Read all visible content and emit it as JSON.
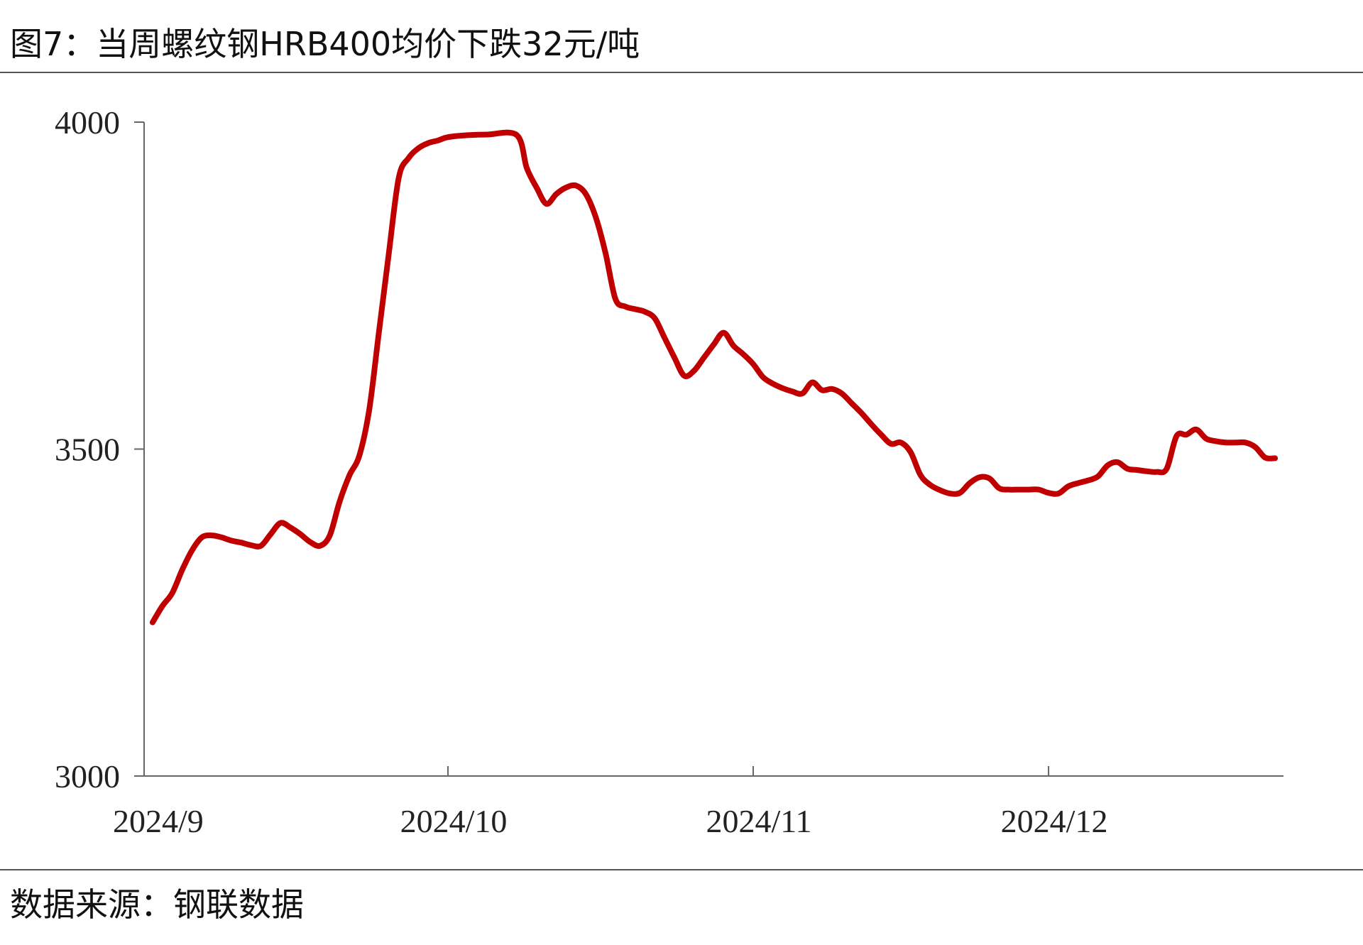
{
  "header": {
    "title": "图7：当周螺纹钢HRB400均价下跌32元/吨"
  },
  "footer": {
    "source": "数据来源：钢联数据"
  },
  "chart_data": {
    "type": "line",
    "title": "图7：当周螺纹钢HRB400均价下跌32元/吨",
    "xlabel": "",
    "ylabel": "",
    "ylim": [
      3000,
      4000
    ],
    "yticks": [
      3000,
      3500,
      4000
    ],
    "xticks": [
      "2024/9",
      "2024/10",
      "2024/11",
      "2024/12"
    ],
    "grid": false,
    "legend": "none",
    "series": [
      {
        "color": "#c00000",
        "points": [
          [
            "2024-09-01",
            3235
          ],
          [
            "2024-09-02",
            3260
          ],
          [
            "2024-09-03",
            3280
          ],
          [
            "2024-09-04",
            3315
          ],
          [
            "2024-09-05",
            3345
          ],
          [
            "2024-09-06",
            3365
          ],
          [
            "2024-09-07",
            3368
          ],
          [
            "2024-09-08",
            3365
          ],
          [
            "2024-09-09",
            3360
          ],
          [
            "2024-09-10",
            3357
          ],
          [
            "2024-09-11",
            3353
          ],
          [
            "2024-09-12",
            3352
          ],
          [
            "2024-09-13",
            3370
          ],
          [
            "2024-09-14",
            3387
          ],
          [
            "2024-09-15",
            3380
          ],
          [
            "2024-09-16",
            3370
          ],
          [
            "2024-09-17",
            3358
          ],
          [
            "2024-09-18",
            3352
          ],
          [
            "2024-09-19",
            3368
          ],
          [
            "2024-09-20",
            3420
          ],
          [
            "2024-09-21",
            3460
          ],
          [
            "2024-09-22",
            3490
          ],
          [
            "2024-09-23",
            3560
          ],
          [
            "2024-09-24",
            3680
          ],
          [
            "2024-09-25",
            3800
          ],
          [
            "2024-09-26",
            3915
          ],
          [
            "2024-09-27",
            3945
          ],
          [
            "2024-09-28",
            3960
          ],
          [
            "2024-09-29",
            3968
          ],
          [
            "2024-09-30",
            3972
          ],
          [
            "2024-10-01",
            3977
          ],
          [
            "2024-10-03",
            3980
          ],
          [
            "2024-10-05",
            3981
          ],
          [
            "2024-10-08",
            3980
          ],
          [
            "2024-10-09",
            3930
          ],
          [
            "2024-10-10",
            3900
          ],
          [
            "2024-10-11",
            3875
          ],
          [
            "2024-10-12",
            3890
          ],
          [
            "2024-10-13",
            3900
          ],
          [
            "2024-10-14",
            3903
          ],
          [
            "2024-10-15",
            3890
          ],
          [
            "2024-10-16",
            3855
          ],
          [
            "2024-10-17",
            3800
          ],
          [
            "2024-10-18",
            3730
          ],
          [
            "2024-10-19",
            3718
          ],
          [
            "2024-10-20",
            3714
          ],
          [
            "2024-10-21",
            3710
          ],
          [
            "2024-10-22",
            3700
          ],
          [
            "2024-10-23",
            3670
          ],
          [
            "2024-10-24",
            3640
          ],
          [
            "2024-10-25",
            3612
          ],
          [
            "2024-10-26",
            3620
          ],
          [
            "2024-10-27",
            3640
          ],
          [
            "2024-10-28",
            3660
          ],
          [
            "2024-10-29",
            3678
          ],
          [
            "2024-10-30",
            3658
          ],
          [
            "2024-10-31",
            3645
          ],
          [
            "2024-11-01",
            3630
          ],
          [
            "2024-11-02",
            3610
          ],
          [
            "2024-11-03",
            3600
          ],
          [
            "2024-11-04",
            3593
          ],
          [
            "2024-11-05",
            3588
          ],
          [
            "2024-11-06",
            3585
          ],
          [
            "2024-11-07",
            3602
          ],
          [
            "2024-11-08",
            3590
          ],
          [
            "2024-11-09",
            3592
          ],
          [
            "2024-11-10",
            3585
          ],
          [
            "2024-11-11",
            3570
          ],
          [
            "2024-11-12",
            3555
          ],
          [
            "2024-11-13",
            3538
          ],
          [
            "2024-11-14",
            3522
          ],
          [
            "2024-11-15",
            3508
          ],
          [
            "2024-11-16",
            3510
          ],
          [
            "2024-11-17",
            3495
          ],
          [
            "2024-11-18",
            3460
          ],
          [
            "2024-11-19",
            3445
          ],
          [
            "2024-11-20",
            3437
          ],
          [
            "2024-11-21",
            3432
          ],
          [
            "2024-11-22",
            3433
          ],
          [
            "2024-11-23",
            3448
          ],
          [
            "2024-11-24",
            3457
          ],
          [
            "2024-11-25",
            3455
          ],
          [
            "2024-11-26",
            3440
          ],
          [
            "2024-11-27",
            3438
          ],
          [
            "2024-11-28",
            3438
          ],
          [
            "2024-11-29",
            3438
          ],
          [
            "2024-11-30",
            3438
          ],
          [
            "2024-12-01",
            3433
          ],
          [
            "2024-12-02",
            3432
          ],
          [
            "2024-12-03",
            3443
          ],
          [
            "2024-12-04",
            3448
          ],
          [
            "2024-12-05",
            3452
          ],
          [
            "2024-12-06",
            3458
          ],
          [
            "2024-12-07",
            3475
          ],
          [
            "2024-12-08",
            3480
          ],
          [
            "2024-12-09",
            3470
          ],
          [
            "2024-12-10",
            3468
          ],
          [
            "2024-12-11",
            3466
          ],
          [
            "2024-12-12",
            3465
          ],
          [
            "2024-12-13",
            3470
          ],
          [
            "2024-12-14",
            3520
          ],
          [
            "2024-12-15",
            3522
          ],
          [
            "2024-12-16",
            3530
          ],
          [
            "2024-12-17",
            3516
          ],
          [
            "2024-12-18",
            3512
          ],
          [
            "2024-12-19",
            3510
          ],
          [
            "2024-12-20",
            3510
          ],
          [
            "2024-12-21",
            3510
          ],
          [
            "2024-12-22",
            3503
          ],
          [
            "2024-12-23",
            3487
          ],
          [
            "2024-12-24",
            3486
          ]
        ]
      }
    ]
  }
}
